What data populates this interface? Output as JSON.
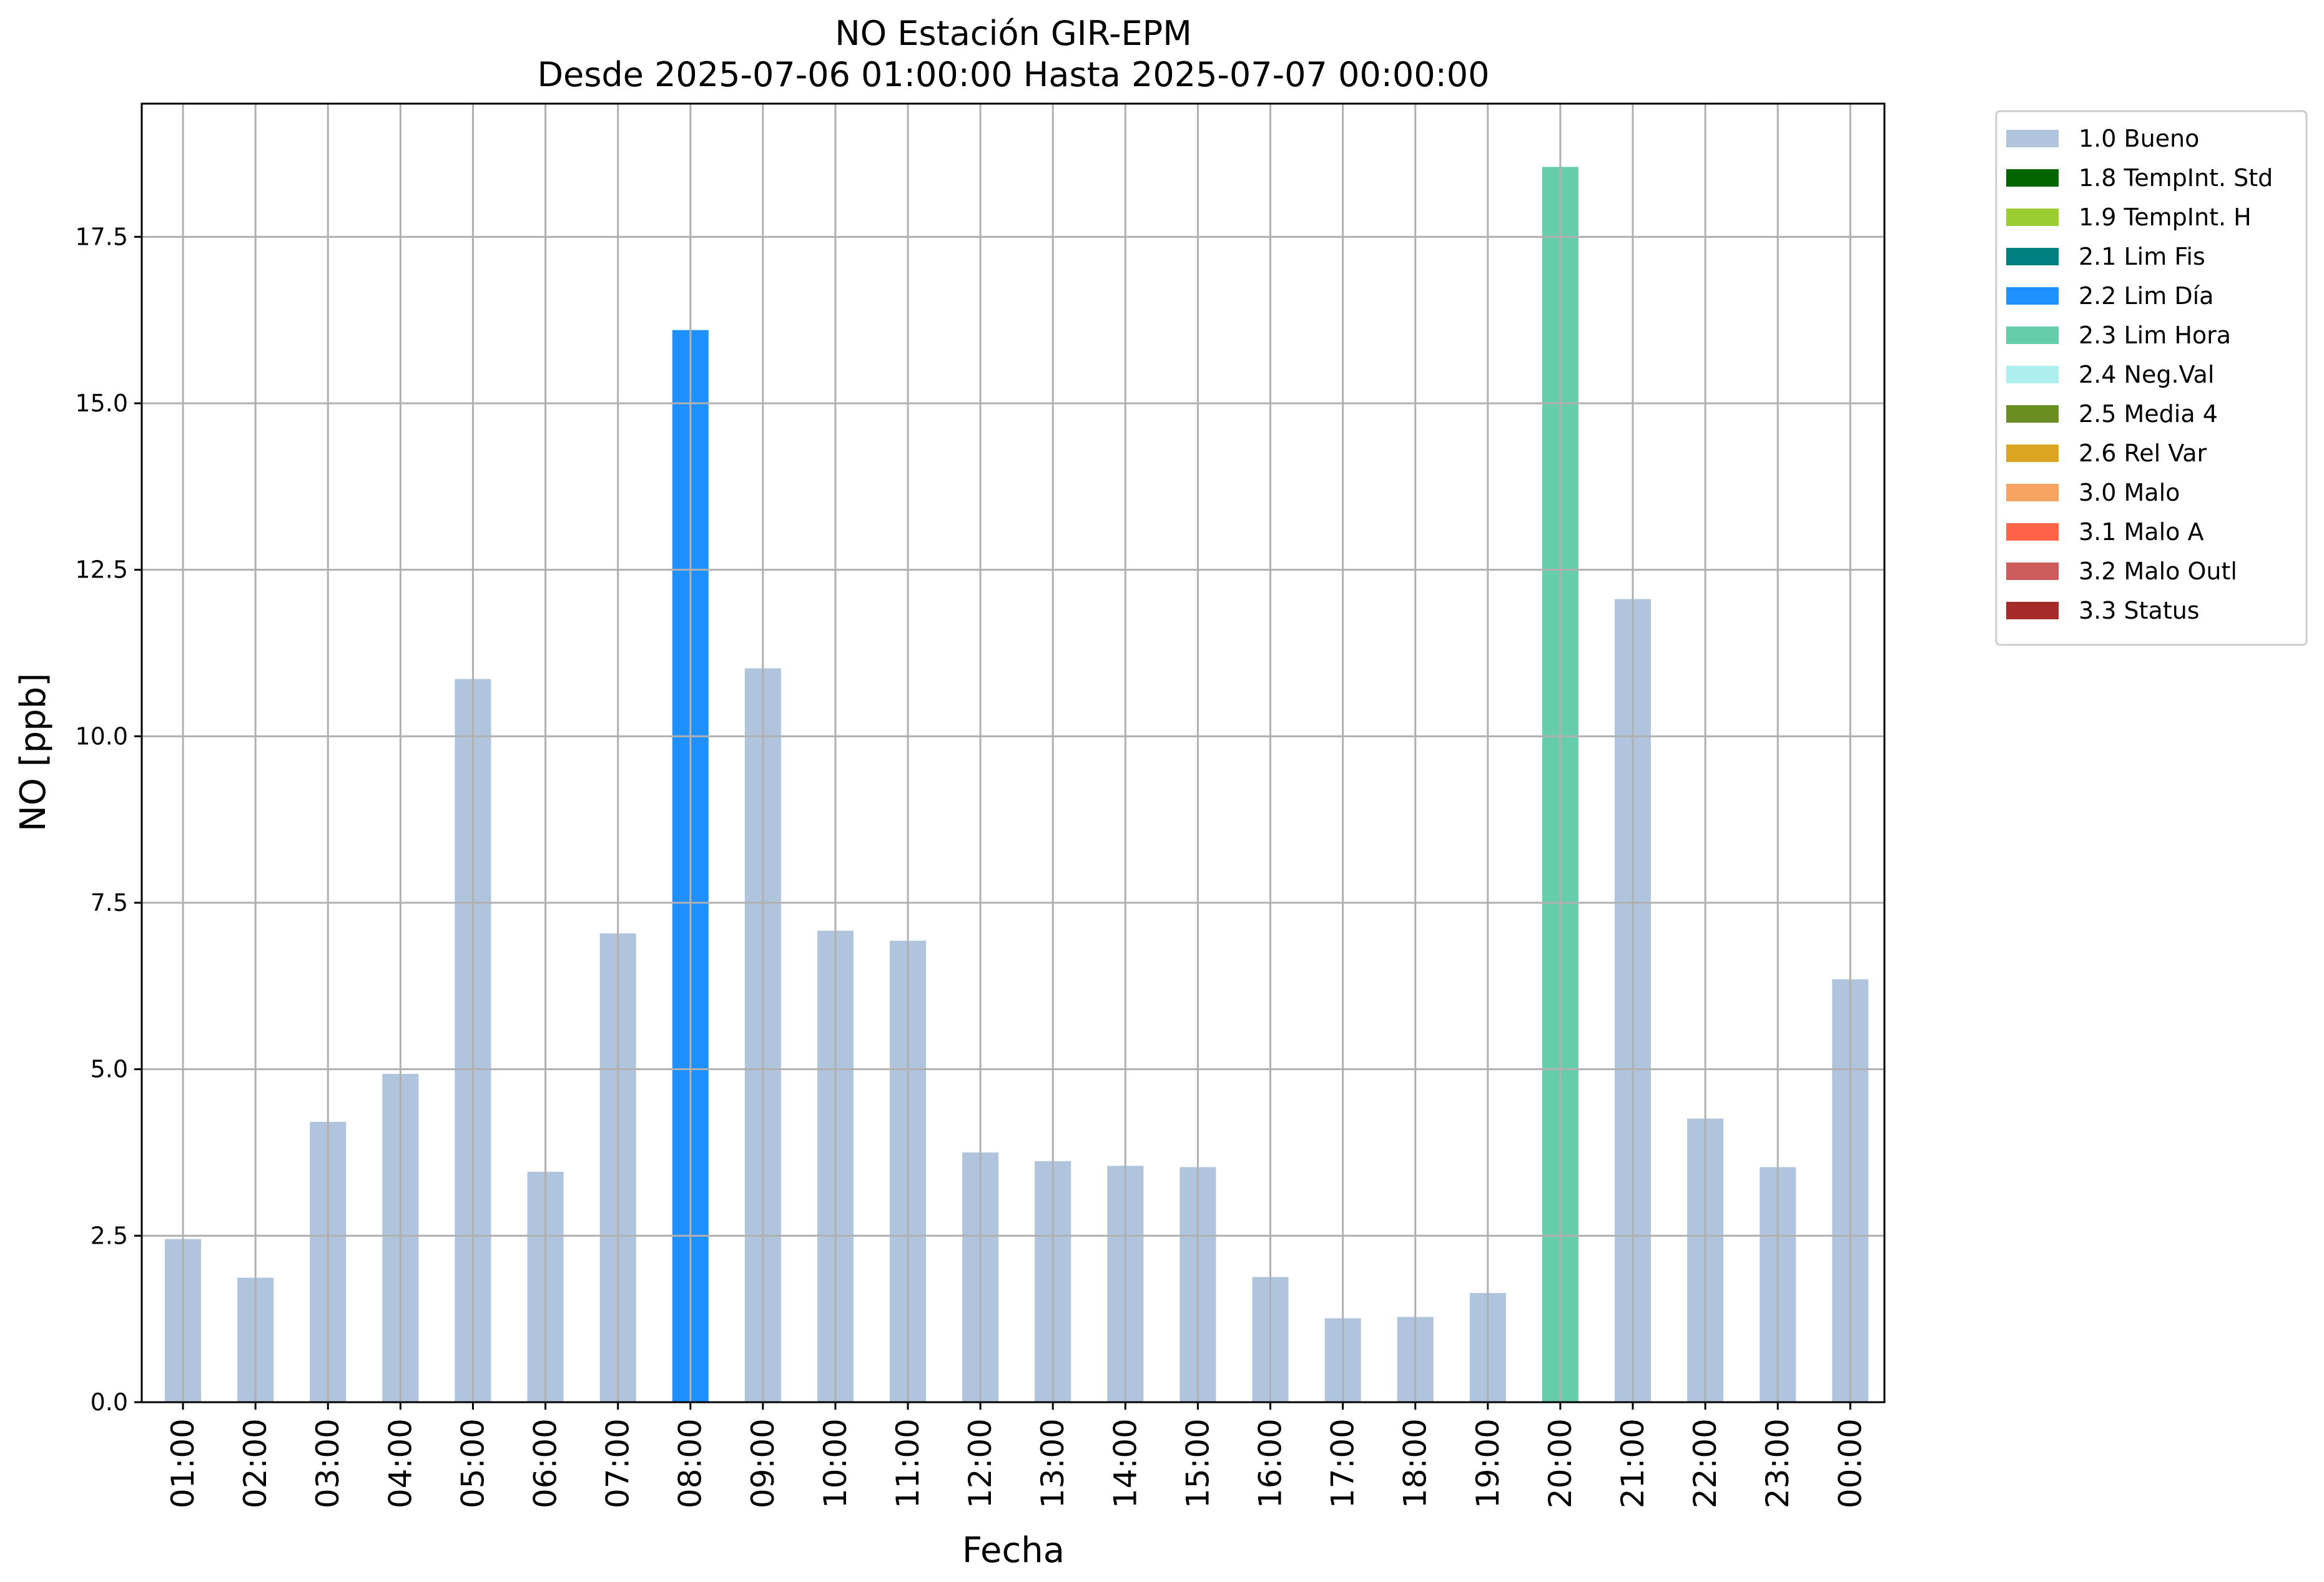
{
  "chart_data": {
    "type": "bar",
    "title": "NO Estación GIR-EPM",
    "subtitle": "Desde 2025-07-06 01:00:00 Hasta 2025-07-07 00:00:00",
    "xlabel": "Fecha",
    "ylabel": "NO [ppb]",
    "ylim": [
      0,
      19.5
    ],
    "yticks": [
      "0.0",
      "2.5",
      "5.0",
      "7.5",
      "10.0",
      "12.5",
      "15.0",
      "17.5"
    ],
    "grid": true,
    "legend_position": "outside-top-right",
    "categories": [
      "01:00",
      "02:00",
      "03:00",
      "04:00",
      "05:00",
      "06:00",
      "07:00",
      "08:00",
      "09:00",
      "10:00",
      "11:00",
      "12:00",
      "13:00",
      "14:00",
      "15:00",
      "16:00",
      "17:00",
      "18:00",
      "19:00",
      "20:00",
      "21:00",
      "22:00",
      "23:00",
      "00:00"
    ],
    "values": [
      2.45,
      1.87,
      4.21,
      4.93,
      10.86,
      3.46,
      7.04,
      16.1,
      11.02,
      7.08,
      6.93,
      3.75,
      3.62,
      3.55,
      3.53,
      1.88,
      1.26,
      1.28,
      1.64,
      18.55,
      12.06,
      4.26,
      3.53,
      6.35
    ],
    "flags": [
      "1.0 Bueno",
      "1.0 Bueno",
      "1.0 Bueno",
      "1.0 Bueno",
      "1.0 Bueno",
      "1.0 Bueno",
      "1.0 Bueno",
      "2.2 Lim Día",
      "1.0 Bueno",
      "1.0 Bueno",
      "1.0 Bueno",
      "1.0 Bueno",
      "1.0 Bueno",
      "1.0 Bueno",
      "1.0 Bueno",
      "1.0 Bueno",
      "1.0 Bueno",
      "1.0 Bueno",
      "1.0 Bueno",
      "2.3 Lim Hora",
      "1.0 Bueno",
      "1.0 Bueno",
      "1.0 Bueno",
      "1.0 Bueno"
    ],
    "legend": [
      {
        "label": "1.0 Bueno",
        "color": "#b0c4de"
      },
      {
        "label": "1.8 TempInt. Std",
        "color": "#006400"
      },
      {
        "label": "1.9 TempInt. H",
        "color": "#9acd32"
      },
      {
        "label": "2.1 Lim Fis",
        "color": "#008080"
      },
      {
        "label": "2.2 Lim Día",
        "color": "#1e90ff"
      },
      {
        "label": "2.3 Lim Hora",
        "color": "#66cdaa"
      },
      {
        "label": "2.4 Neg.Val",
        "color": "#afeeee"
      },
      {
        "label": "2.5 Media 4",
        "color": "#6b8e23"
      },
      {
        "label": "2.6 Rel Var",
        "color": "#daa520"
      },
      {
        "label": "3.0 Malo",
        "color": "#f4a460"
      },
      {
        "label": "3.1 Malo A",
        "color": "#ff6347"
      },
      {
        "label": "3.2 Malo Outl",
        "color": "#cd5c5c"
      },
      {
        "label": "3.3 Status",
        "color": "#a52a2a"
      }
    ]
  }
}
